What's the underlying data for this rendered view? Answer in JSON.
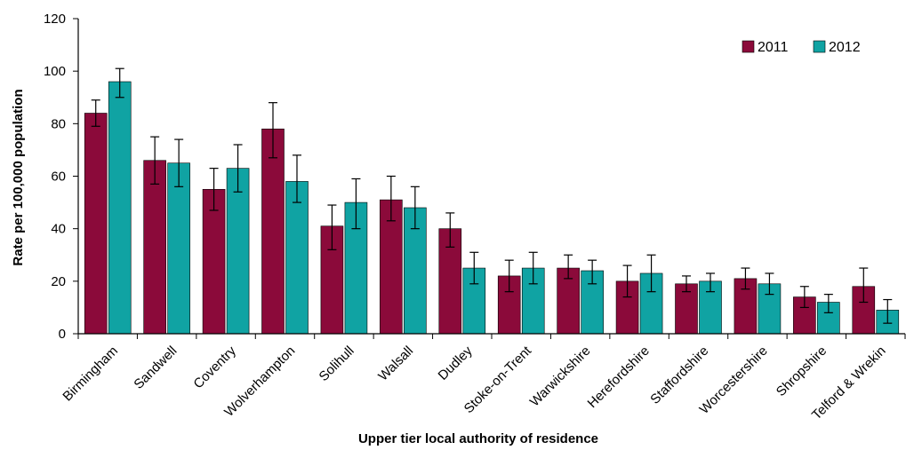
{
  "chart_data": {
    "type": "bar",
    "title": "",
    "xlabel": "Upper tier local authority of residence",
    "ylabel": "Rate per 100,000 population",
    "ylim": [
      0,
      120
    ],
    "yticks": [
      0,
      20,
      40,
      60,
      80,
      100,
      120
    ],
    "grid": false,
    "legend_position": "top-right",
    "categories": [
      "Birmingham",
      "Sandwell",
      "Coventry",
      "Wolverhampton",
      "Solihull",
      "Walsall",
      "Dudley",
      "Stoke-on-Trent",
      "Warwickshire",
      "Herefordshire",
      "Staffordshire",
      "Worcestershire",
      "Shropshire",
      "Telford & Wrekin"
    ],
    "series": [
      {
        "name": "2011",
        "color": "#8b0a3a",
        "values": [
          84,
          66,
          55,
          78,
          41,
          51,
          40,
          22,
          25,
          20,
          19,
          21,
          14,
          18
        ],
        "error_low": [
          79,
          57,
          47,
          67,
          32,
          43,
          33,
          16,
          21,
          14,
          16,
          17,
          10,
          12
        ],
        "error_high": [
          89,
          75,
          63,
          88,
          49,
          60,
          46,
          28,
          30,
          26,
          22,
          25,
          18,
          25
        ]
      },
      {
        "name": "2012",
        "color": "#10a3a3",
        "values": [
          96,
          65,
          63,
          58,
          50,
          48,
          25,
          25,
          24,
          23,
          20,
          19,
          12,
          9
        ],
        "error_low": [
          90,
          56,
          54,
          50,
          40,
          40,
          19,
          19,
          19,
          16,
          16,
          15,
          8,
          4
        ],
        "error_high": [
          101,
          74,
          72,
          68,
          59,
          56,
          31,
          31,
          28,
          30,
          23,
          23,
          15,
          13
        ]
      }
    ]
  }
}
